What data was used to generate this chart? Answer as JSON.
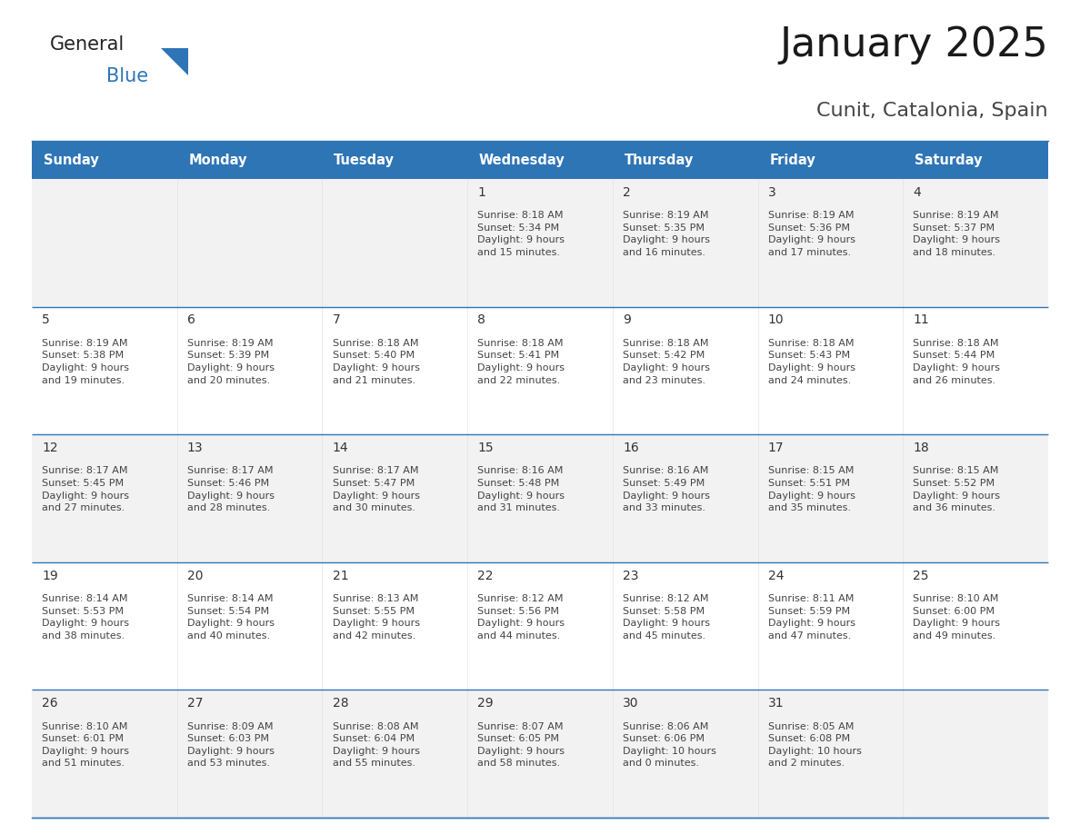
{
  "title": "January 2025",
  "subtitle": "Cunit, Catalonia, Spain",
  "header_bg": "#2E75B6",
  "header_text_color": "#FFFFFF",
  "days_of_week": [
    "Sunday",
    "Monday",
    "Tuesday",
    "Wednesday",
    "Thursday",
    "Friday",
    "Saturday"
  ],
  "row_bg_odd": "#F2F2F2",
  "row_bg_even": "#FFFFFF",
  "cell_border_color": "#2E75B6",
  "day_number_color": "#333333",
  "info_text_color": "#444444",
  "title_fontsize": 32,
  "subtitle_fontsize": 16,
  "header_fontsize": 10.5,
  "day_num_fontsize": 10,
  "info_fontsize": 8,
  "logo_general_color": "#222222",
  "logo_blue_color": "#2E75B6",
  "logo_triangle_color": "#2E75B6",
  "calendar": [
    [
      {
        "day": null,
        "sunrise": null,
        "sunset": null,
        "daylight": null
      },
      {
        "day": null,
        "sunrise": null,
        "sunset": null,
        "daylight": null
      },
      {
        "day": null,
        "sunrise": null,
        "sunset": null,
        "daylight": null
      },
      {
        "day": 1,
        "sunrise": "8:18 AM",
        "sunset": "5:34 PM",
        "daylight": "9 hours\nand 15 minutes."
      },
      {
        "day": 2,
        "sunrise": "8:19 AM",
        "sunset": "5:35 PM",
        "daylight": "9 hours\nand 16 minutes."
      },
      {
        "day": 3,
        "sunrise": "8:19 AM",
        "sunset": "5:36 PM",
        "daylight": "9 hours\nand 17 minutes."
      },
      {
        "day": 4,
        "sunrise": "8:19 AM",
        "sunset": "5:37 PM",
        "daylight": "9 hours\nand 18 minutes."
      }
    ],
    [
      {
        "day": 5,
        "sunrise": "8:19 AM",
        "sunset": "5:38 PM",
        "daylight": "9 hours\nand 19 minutes."
      },
      {
        "day": 6,
        "sunrise": "8:19 AM",
        "sunset": "5:39 PM",
        "daylight": "9 hours\nand 20 minutes."
      },
      {
        "day": 7,
        "sunrise": "8:18 AM",
        "sunset": "5:40 PM",
        "daylight": "9 hours\nand 21 minutes."
      },
      {
        "day": 8,
        "sunrise": "8:18 AM",
        "sunset": "5:41 PM",
        "daylight": "9 hours\nand 22 minutes."
      },
      {
        "day": 9,
        "sunrise": "8:18 AM",
        "sunset": "5:42 PM",
        "daylight": "9 hours\nand 23 minutes."
      },
      {
        "day": 10,
        "sunrise": "8:18 AM",
        "sunset": "5:43 PM",
        "daylight": "9 hours\nand 24 minutes."
      },
      {
        "day": 11,
        "sunrise": "8:18 AM",
        "sunset": "5:44 PM",
        "daylight": "9 hours\nand 26 minutes."
      }
    ],
    [
      {
        "day": 12,
        "sunrise": "8:17 AM",
        "sunset": "5:45 PM",
        "daylight": "9 hours\nand 27 minutes."
      },
      {
        "day": 13,
        "sunrise": "8:17 AM",
        "sunset": "5:46 PM",
        "daylight": "9 hours\nand 28 minutes."
      },
      {
        "day": 14,
        "sunrise": "8:17 AM",
        "sunset": "5:47 PM",
        "daylight": "9 hours\nand 30 minutes."
      },
      {
        "day": 15,
        "sunrise": "8:16 AM",
        "sunset": "5:48 PM",
        "daylight": "9 hours\nand 31 minutes."
      },
      {
        "day": 16,
        "sunrise": "8:16 AM",
        "sunset": "5:49 PM",
        "daylight": "9 hours\nand 33 minutes."
      },
      {
        "day": 17,
        "sunrise": "8:15 AM",
        "sunset": "5:51 PM",
        "daylight": "9 hours\nand 35 minutes."
      },
      {
        "day": 18,
        "sunrise": "8:15 AM",
        "sunset": "5:52 PM",
        "daylight": "9 hours\nand 36 minutes."
      }
    ],
    [
      {
        "day": 19,
        "sunrise": "8:14 AM",
        "sunset": "5:53 PM",
        "daylight": "9 hours\nand 38 minutes."
      },
      {
        "day": 20,
        "sunrise": "8:14 AM",
        "sunset": "5:54 PM",
        "daylight": "9 hours\nand 40 minutes."
      },
      {
        "day": 21,
        "sunrise": "8:13 AM",
        "sunset": "5:55 PM",
        "daylight": "9 hours\nand 42 minutes."
      },
      {
        "day": 22,
        "sunrise": "8:12 AM",
        "sunset": "5:56 PM",
        "daylight": "9 hours\nand 44 minutes."
      },
      {
        "day": 23,
        "sunrise": "8:12 AM",
        "sunset": "5:58 PM",
        "daylight": "9 hours\nand 45 minutes."
      },
      {
        "day": 24,
        "sunrise": "8:11 AM",
        "sunset": "5:59 PM",
        "daylight": "9 hours\nand 47 minutes."
      },
      {
        "day": 25,
        "sunrise": "8:10 AM",
        "sunset": "6:00 PM",
        "daylight": "9 hours\nand 49 minutes."
      }
    ],
    [
      {
        "day": 26,
        "sunrise": "8:10 AM",
        "sunset": "6:01 PM",
        "daylight": "9 hours\nand 51 minutes."
      },
      {
        "day": 27,
        "sunrise": "8:09 AM",
        "sunset": "6:03 PM",
        "daylight": "9 hours\nand 53 minutes."
      },
      {
        "day": 28,
        "sunrise": "8:08 AM",
        "sunset": "6:04 PM",
        "daylight": "9 hours\nand 55 minutes."
      },
      {
        "day": 29,
        "sunrise": "8:07 AM",
        "sunset": "6:05 PM",
        "daylight": "9 hours\nand 58 minutes."
      },
      {
        "day": 30,
        "sunrise": "8:06 AM",
        "sunset": "6:06 PM",
        "daylight": "10 hours\nand 0 minutes."
      },
      {
        "day": 31,
        "sunrise": "8:05 AM",
        "sunset": "6:08 PM",
        "daylight": "10 hours\nand 2 minutes."
      },
      {
        "day": null,
        "sunrise": null,
        "sunset": null,
        "daylight": null
      }
    ]
  ]
}
